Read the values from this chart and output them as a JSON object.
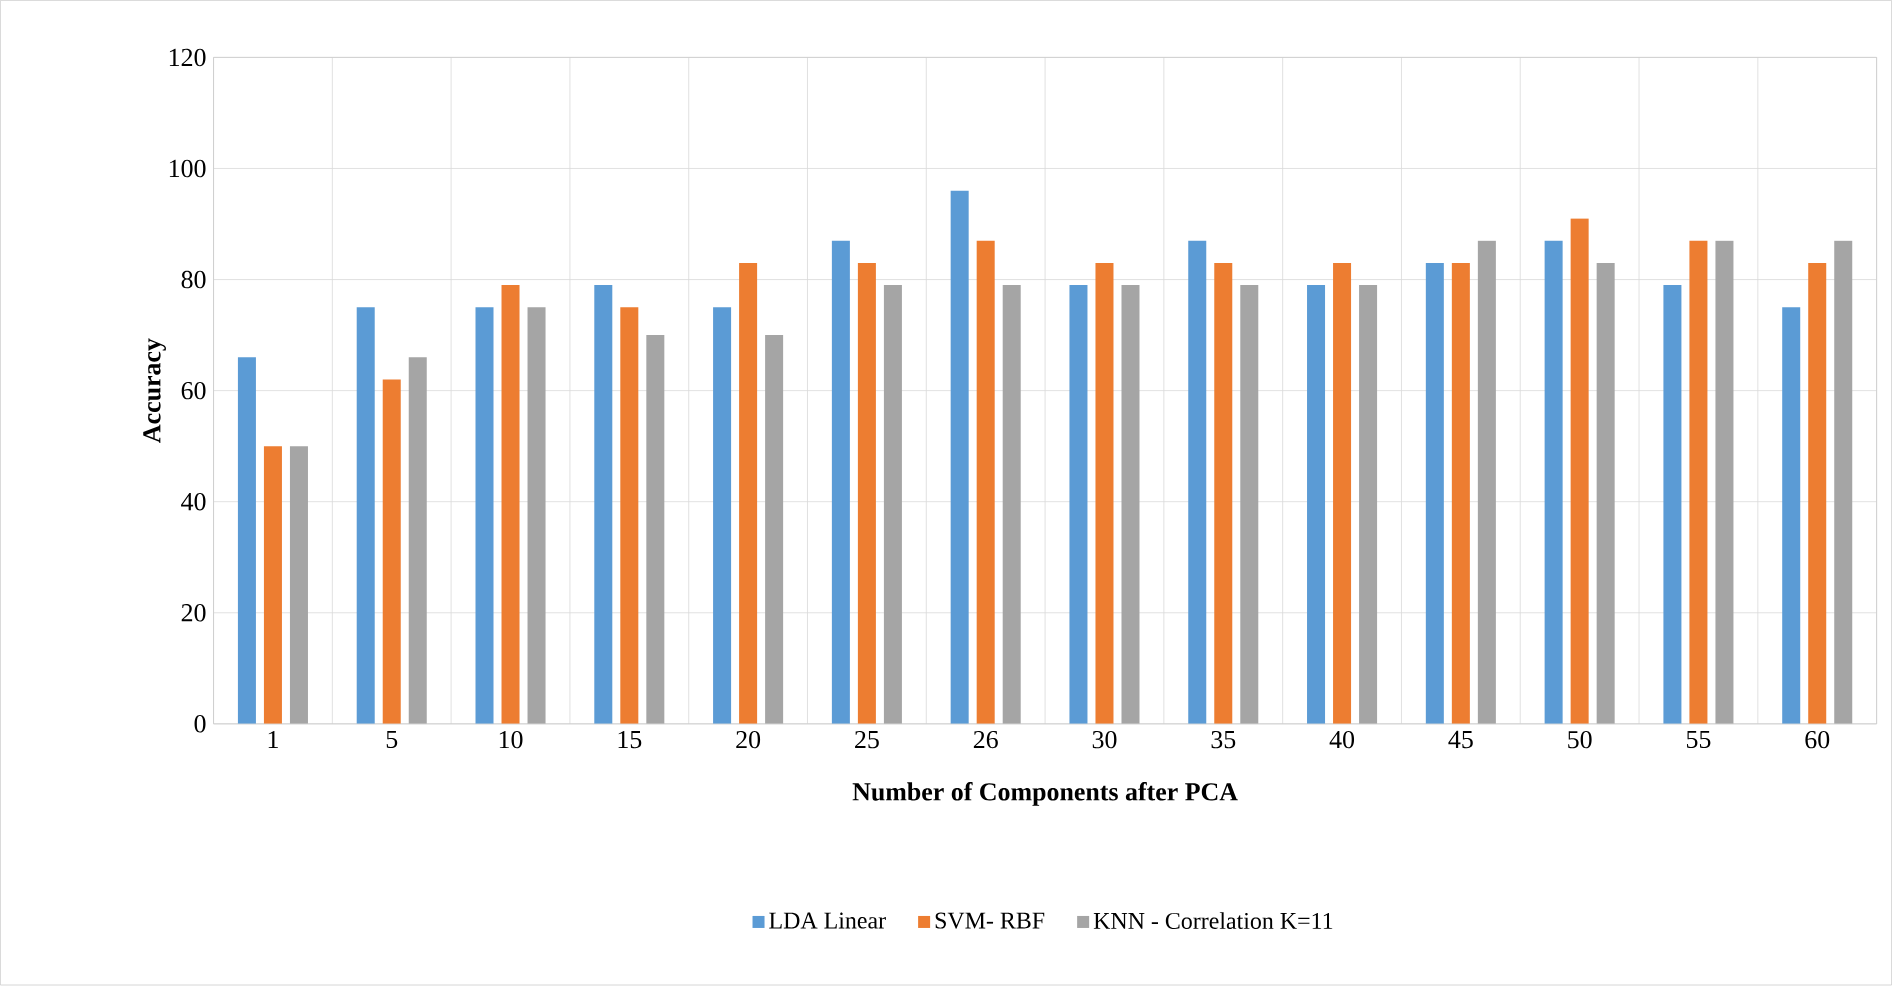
{
  "chart_data": {
    "type": "bar",
    "xlabel": "Number of Components after PCA",
    "ylabel": "Accuracy",
    "categories": [
      "1",
      "5",
      "10",
      "15",
      "20",
      "25",
      "26",
      "30",
      "35",
      "40",
      "45",
      "50",
      "55",
      "60"
    ],
    "series": [
      {
        "name": "LDA Linear",
        "color": "#5b9bd5",
        "values": [
          66,
          75,
          75,
          79,
          75,
          87,
          96,
          79,
          87,
          79,
          83,
          87,
          79,
          75
        ]
      },
      {
        "name": "SVM- RBF",
        "color": "#ed7d31",
        "values": [
          50,
          62,
          79,
          75,
          83,
          83,
          87,
          83,
          83,
          83,
          83,
          91,
          87,
          83
        ]
      },
      {
        "name": "KNN - Correlation K=11",
        "color": "#a5a5a5",
        "values": [
          50,
          66,
          75,
          70,
          70,
          79,
          79,
          79,
          79,
          79,
          87,
          83,
          87,
          87
        ]
      }
    ],
    "ylim": [
      0,
      120
    ],
    "yticks": [
      0,
      20,
      40,
      60,
      80,
      100,
      120
    ],
    "grid": true,
    "legend": "bottom"
  }
}
